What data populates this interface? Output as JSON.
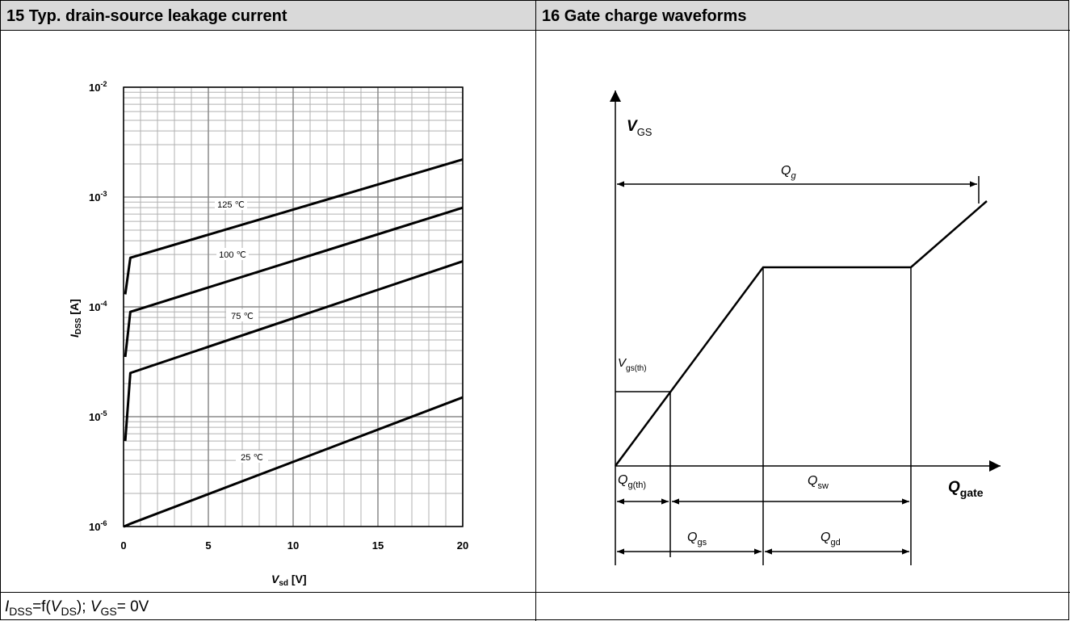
{
  "header": [
    "15 Typ. drain-source leakage current",
    "16 Gate charge waveforms"
  ],
  "chart_data": {
    "type": "line",
    "xlabel": [
      "V",
      "sd",
      " [V]"
    ],
    "ylabel": [
      "I",
      "DSS",
      " [A]"
    ],
    "x": [
      0,
      0.1,
      0.4,
      20
    ],
    "series": [
      {
        "name": "125 ℃",
        "color": "#000000",
        "values": [
          null,
          0.00013,
          0.00028,
          0.0022
        ]
      },
      {
        "name": "100 ℃",
        "color": "#000000",
        "values": [
          null,
          3.5e-05,
          9e-05,
          0.0008
        ]
      },
      {
        "name": "75 ℃",
        "color": "#000000",
        "values": [
          null,
          6e-06,
          2.5e-05,
          0.00026
        ]
      },
      {
        "name": "25 ℃",
        "color": "#000000",
        "values": [
          1e-06,
          1.01e-06,
          1.06e-06,
          1.5e-05
        ]
      }
    ],
    "xlim": [
      0,
      20
    ],
    "xticks": [
      0,
      5,
      10,
      15,
      20
    ],
    "ylim": [
      1e-06,
      0.01
    ],
    "yticks": [
      {
        "value": 1e-06,
        "label": "10-6"
      },
      {
        "value": 1e-05,
        "label": "10-5"
      },
      {
        "value": 0.0001,
        "label": "10-4"
      },
      {
        "value": 0.001,
        "label": "10-3"
      },
      {
        "value": 0.01,
        "label": "10-2"
      }
    ],
    "log_y": true,
    "grid": true
  },
  "footer": [
    "I",
    "DSS",
    "=f(",
    "V",
    "DS",
    "); ",
    "V",
    "GS",
    "= 0V"
  ],
  "diagram": {
    "vgs": [
      "V",
      "GS"
    ],
    "qg": [
      "Q",
      "g"
    ],
    "vgs_th": [
      "V",
      "gs(th)"
    ],
    "qgate": [
      "Q",
      "gate"
    ],
    "qg_th": [
      "Q",
      "g(th)"
    ],
    "qsw": [
      "Q",
      "sw"
    ],
    "qgs": [
      "Q",
      "gs"
    ],
    "qgd": [
      "Q",
      "gd"
    ]
  }
}
